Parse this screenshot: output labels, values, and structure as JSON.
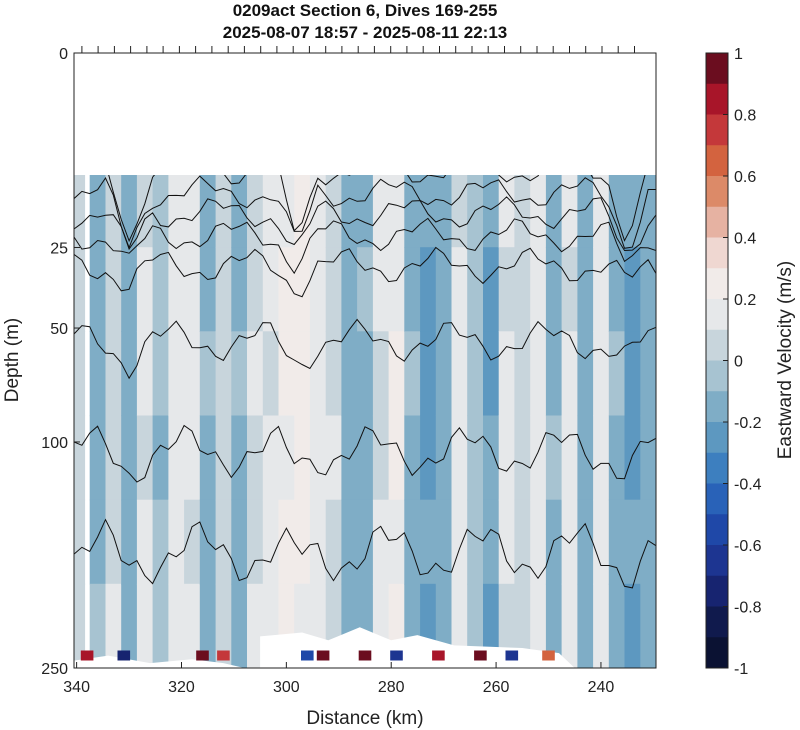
{
  "chart_data": {
    "type": "heatmap",
    "title": "0209act Section 6, Dives 169-255",
    "subtitle": "2025-08-07 18:57 - 2025-08-11 22:13",
    "xlabel": "Distance (km)",
    "ylabel": "Depth (m)",
    "xlim": [
      340.5,
      229.5
    ],
    "x_reversed": true,
    "ylim": [
      250,
      0
    ],
    "y_scale": "sqrt",
    "x_ticks": [
      340,
      320,
      300,
      280,
      260,
      240
    ],
    "y_ticks": [
      0,
      25,
      50,
      100,
      250
    ],
    "data_top_depth": 8,
    "grid": false,
    "colorbar": {
      "label": "Eastward Velocity (m/s)",
      "range": [
        -1,
        1
      ],
      "ticks": [
        1,
        0.8,
        0.6,
        0.4,
        0.2,
        0,
        -0.2,
        -0.4,
        -0.6,
        -0.8,
        -1
      ],
      "tick_labels": [
        "1",
        "0.8",
        "0.6",
        "0.4",
        "0.2",
        "0",
        "-0.2",
        "-0.4",
        "-0.6",
        "-0.8",
        "-1"
      ],
      "colors": [
        "#6b0d1f",
        "#a81529",
        "#c4383a",
        "#d3633f",
        "#dc8a68",
        "#e6b2a2",
        "#efd7d1",
        "#f1ebe9",
        "#e6e8ea",
        "#c8d5dc",
        "#a7c3d1",
        "#7fadc6",
        "#5d98c0",
        "#3d7fbf",
        "#2962b8",
        "#1f48a8",
        "#1d3591",
        "#172470",
        "#101a4d",
        "#0b1233"
      ]
    },
    "velocity_profile": {
      "distance_km": [
        340,
        336,
        333,
        330,
        327,
        324,
        321,
        318,
        315,
        312,
        309,
        306,
        303,
        300,
        297,
        294,
        291,
        288,
        285,
        282,
        279,
        276,
        273,
        270,
        267,
        264,
        261,
        258,
        255,
        252,
        249,
        246,
        243,
        240,
        237,
        234,
        231
      ],
      "eastward_velocity": [
        0.05,
        -0.12,
        0.08,
        -0.15,
        0.1,
        -0.08,
        0.15,
        0.12,
        -0.1,
        0.05,
        -0.12,
        0.08,
        0.12,
        0.2,
        0.22,
        0.15,
        0.08,
        -0.15,
        -0.12,
        0.1,
        0.18,
        -0.1,
        -0.2,
        -0.15,
        0.12,
        -0.05,
        -0.18,
        0.1,
        0.05,
        0.15,
        -0.1,
        0.12,
        -0.15,
        0.15,
        -0.12,
        -0.2,
        -0.15
      ]
    },
    "dive_marks": "regular surface tick marks for dives 169-255 along the top axis",
    "contour_lines": "black isolines, wavy, descending with depth; V-shaped dips near 330 km, 298 km and 235 km",
    "bottom_mask": "white region over the bottom ~30 m near 303-285 km and along the bottom edge"
  }
}
